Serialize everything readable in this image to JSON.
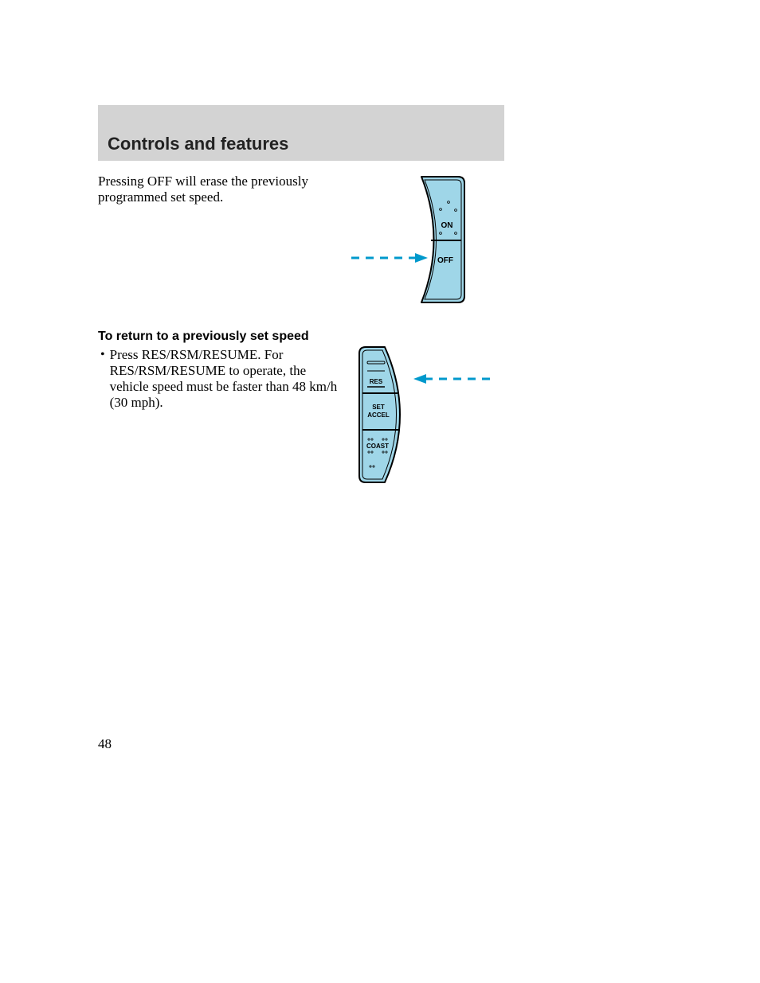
{
  "header": {
    "title": "Controls and features"
  },
  "body": {
    "para1": "Pressing OFF will erase the previously programmed set speed.",
    "subhead": "To return to a previously set speed",
    "bullet1": "Press RES/RSM/RESUME. For RES/RSM/RESUME to operate, the vehicle speed must be faster than 48 km/h (30 mph)."
  },
  "pageNumber": "48",
  "diagram1": {
    "type": "infographic",
    "labels": {
      "on": "ON",
      "off": "OFF"
    },
    "colors": {
      "fill": "#9fd6e8",
      "stroke": "#000000",
      "arrow": "#0099cc",
      "dot": "#000000",
      "label": "#000000",
      "bg": "#ffffff"
    },
    "label_fontsize": 10,
    "stroke_width": 2,
    "arrow_dash": "10,8",
    "dot_radius": 1.4
  },
  "diagram2": {
    "type": "infographic",
    "labels": {
      "res": "RES",
      "set": "SET",
      "accel": "ACCEL",
      "coast": "COAST"
    },
    "colors": {
      "fill": "#9fd6e8",
      "stroke": "#000000",
      "arrow": "#0099cc",
      "dot": "#000000",
      "label": "#000000",
      "bg": "#ffffff"
    },
    "label_fontsize": 8,
    "stroke_width": 2,
    "arrow_dash": "10,8",
    "dot_radius": 1.1
  }
}
